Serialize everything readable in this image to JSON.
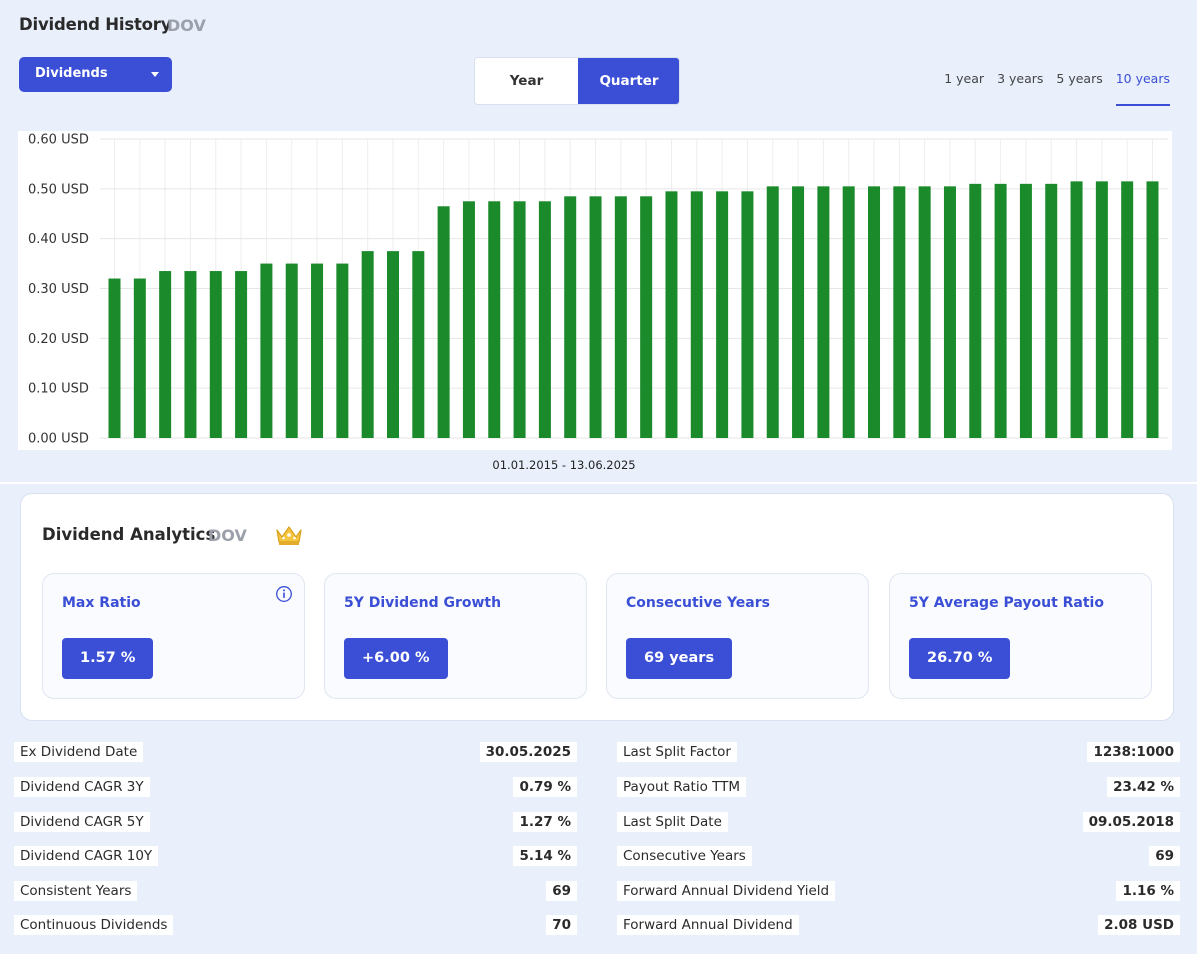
{
  "header": {
    "title": "Dividend History",
    "ticker": "DOV"
  },
  "dropdown": {
    "selected": "Dividends"
  },
  "toggle": {
    "year_label": "Year",
    "quarter_label": "Quarter",
    "active": "Quarter"
  },
  "ranges": {
    "items": [
      "1 year",
      "3 years",
      "5 years",
      "10 years"
    ],
    "active": "10 years"
  },
  "colors": {
    "accent": "#3b4fd6",
    "bar": "#1a8a2a",
    "panel_bg": "#e9f0fc"
  },
  "chart_data": {
    "type": "bar",
    "values": [
      0.32,
      0.32,
      0.335,
      0.335,
      0.335,
      0.335,
      0.35,
      0.35,
      0.35,
      0.35,
      0.375,
      0.375,
      0.375,
      0.465,
      0.475,
      0.475,
      0.475,
      0.475,
      0.485,
      0.485,
      0.485,
      0.485,
      0.495,
      0.495,
      0.495,
      0.495,
      0.505,
      0.505,
      0.505,
      0.505,
      0.505,
      0.505,
      0.505,
      0.505,
      0.51,
      0.51,
      0.51,
      0.51,
      0.515,
      0.515,
      0.515,
      0.515
    ],
    "ylim": [
      0,
      0.6
    ],
    "yticks": [
      "0.00 USD",
      "0.10 USD",
      "0.20 USD",
      "0.30 USD",
      "0.40 USD",
      "0.50 USD",
      "0.60 USD"
    ],
    "xlabel": "01.01.2015 - 13.06.2025",
    "grid": true
  },
  "analytics": {
    "title": "Dividend Analytics",
    "ticker": "DOV",
    "cards": [
      {
        "label": "Max Ratio",
        "value": "1.57 %"
      },
      {
        "label": "5Y Dividend Growth",
        "value": "+6.00 %"
      },
      {
        "label": "Consecutive Years",
        "value": "69 years"
      },
      {
        "label": "5Y Average Payout Ratio",
        "value": "26.70 %"
      }
    ]
  },
  "stats": {
    "left": [
      {
        "label": "Ex Dividend Date",
        "value": "30.05.2025"
      },
      {
        "label": "Dividend CAGR 3Y",
        "value": "0.79 %"
      },
      {
        "label": "Dividend CAGR 5Y",
        "value": "1.27 %"
      },
      {
        "label": "Dividend CAGR 10Y",
        "value": "5.14 %"
      },
      {
        "label": "Consistent Years",
        "value": "69"
      },
      {
        "label": "Continuous Dividends",
        "value": "70"
      }
    ],
    "right": [
      {
        "label": "Last Split Factor",
        "value": "1238:1000"
      },
      {
        "label": "Payout Ratio TTM",
        "value": "23.42 %"
      },
      {
        "label": "Last Split Date",
        "value": "09.05.2018"
      },
      {
        "label": "Consecutive Years",
        "value": "69"
      },
      {
        "label": "Forward Annual Dividend Yield",
        "value": "1.16 %"
      },
      {
        "label": "Forward Annual Dividend",
        "value": "2.08 USD"
      }
    ]
  }
}
